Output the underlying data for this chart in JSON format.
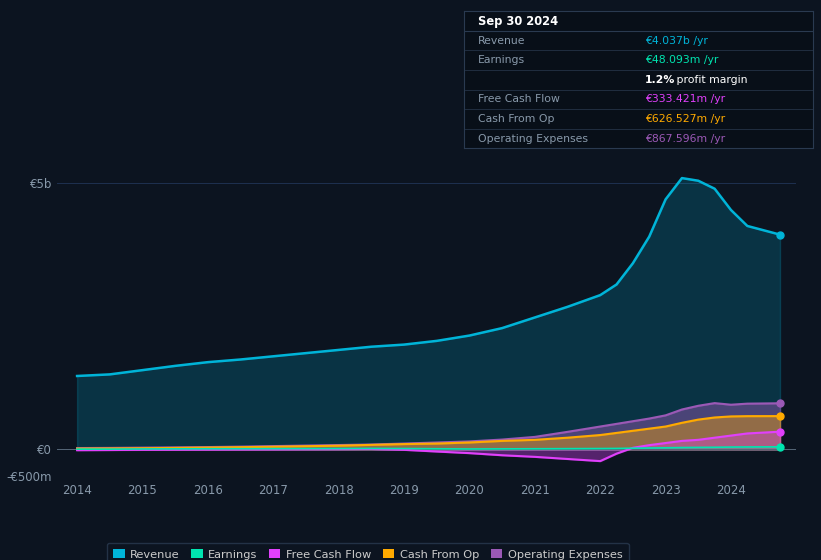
{
  "background_color": "#0c1420",
  "plot_bg_color": "#0c1420",
  "years": [
    2014,
    2014.5,
    2015,
    2015.5,
    2016,
    2016.5,
    2017,
    2017.5,
    2018,
    2018.5,
    2019,
    2019.5,
    2020,
    2020.5,
    2021,
    2021.5,
    2022,
    2022.25,
    2022.5,
    2022.75,
    2023,
    2023.25,
    2023.5,
    2023.75,
    2024,
    2024.25,
    2024.75
  ],
  "revenue": [
    1380,
    1410,
    1490,
    1570,
    1640,
    1690,
    1750,
    1810,
    1870,
    1930,
    1970,
    2040,
    2140,
    2280,
    2480,
    2680,
    2900,
    3100,
    3500,
    4000,
    4700,
    5100,
    5050,
    4900,
    4500,
    4200,
    4037
  ],
  "earnings": [
    5,
    5,
    8,
    10,
    12,
    13,
    14,
    15,
    16,
    18,
    16,
    12,
    8,
    10,
    12,
    14,
    16,
    18,
    22,
    26,
    30,
    35,
    38,
    40,
    44,
    46,
    48
  ],
  "free_cash_flow": [
    -15,
    -12,
    -8,
    -6,
    -4,
    -2,
    0,
    3,
    5,
    8,
    -8,
    -40,
    -70,
    -110,
    -140,
    -180,
    -220,
    -80,
    30,
    80,
    120,
    160,
    180,
    220,
    260,
    300,
    333
  ],
  "cash_from_op": [
    15,
    18,
    22,
    28,
    35,
    42,
    50,
    60,
    70,
    85,
    100,
    110,
    130,
    160,
    180,
    220,
    270,
    310,
    350,
    390,
    430,
    500,
    560,
    600,
    620,
    625,
    626
  ],
  "operating_expenses": [
    25,
    28,
    33,
    38,
    44,
    52,
    62,
    72,
    82,
    92,
    110,
    130,
    150,
    185,
    235,
    330,
    430,
    480,
    530,
    580,
    640,
    750,
    820,
    870,
    840,
    860,
    867
  ],
  "ylim_min": -500,
  "ylim_max": 5500,
  "xlim_min": 2013.7,
  "xlim_max": 2025.0,
  "ytick_vals": [
    -500,
    0,
    5000
  ],
  "ytick_labels": [
    "-€500m",
    "€0",
    "€5b"
  ],
  "xlabel_years": [
    2014,
    2015,
    2016,
    2017,
    2018,
    2019,
    2020,
    2021,
    2022,
    2023,
    2024
  ],
  "revenue_color": "#00b4d8",
  "earnings_color": "#00e5b0",
  "free_cash_flow_color": "#e040fb",
  "cash_from_op_color": "#ffaa00",
  "operating_expenses_color": "#9b59b6",
  "legend_items": [
    "Revenue",
    "Earnings",
    "Free Cash Flow",
    "Cash From Op",
    "Operating Expenses"
  ],
  "info_box_bg": "#080f18",
  "info_box_border": "#2a3a50",
  "info_box": {
    "date": "Sep 30 2024",
    "revenue_label": "Revenue",
    "revenue_val": "€4.037b /yr",
    "earnings_label": "Earnings",
    "earnings_val": "€48.093m /yr",
    "profit_margin": "1.2% profit margin",
    "fcf_label": "Free Cash Flow",
    "fcf_val": "€333.421m /yr",
    "cashop_label": "Cash From Op",
    "cashop_val": "€626.527m /yr",
    "opex_label": "Operating Expenses",
    "opex_val": "€867.596m /yr"
  }
}
